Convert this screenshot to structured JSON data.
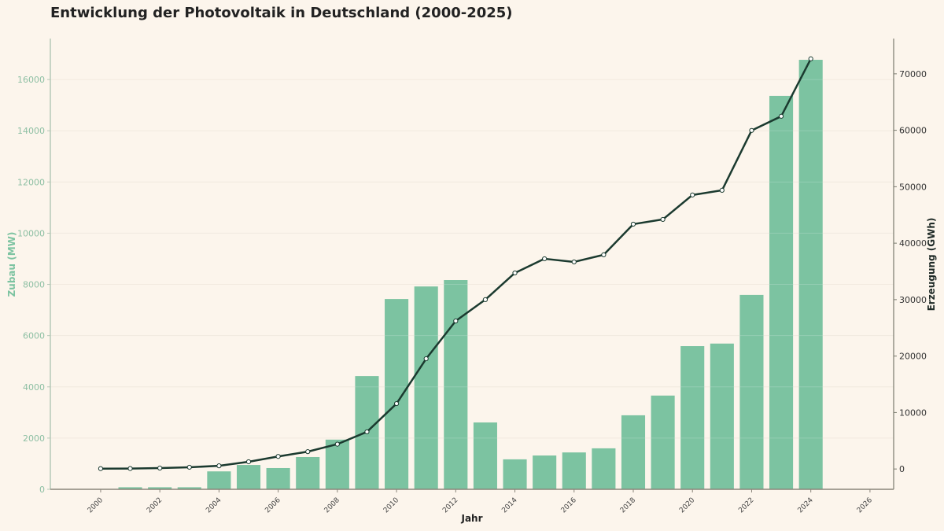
{
  "title": "Entwicklung der Photovoltaik in Deutschland (2000-2025)",
  "colors": {
    "background": "#fcf5ec",
    "bar": "#7cc3a1",
    "line": "#1b3a2f",
    "grid": "#efe6da",
    "left_axis": "#b5c9b8",
    "right_axis": "#7a7a6e",
    "marker_fill": "#ffffff"
  },
  "chart_data": {
    "type": "bar+line",
    "title": "Entwicklung der Photovoltaik in Deutschland (2000-2025)",
    "xlabel": "Jahr",
    "ylabel_left": "Zubau (MW)",
    "ylabel_right": "Erzeugung (GWh)",
    "x_ticks": [
      2000,
      2002,
      2004,
      2006,
      2008,
      2010,
      2012,
      2014,
      2016,
      2018,
      2020,
      2022,
      2024,
      2026
    ],
    "xlim": [
      1998.3,
      2026.8
    ],
    "ylim_left": [
      0,
      17600
    ],
    "ylim_right": [
      -3600,
      76250
    ],
    "y_ticks_left": [
      0,
      2000,
      4000,
      6000,
      8000,
      10000,
      12000,
      14000,
      16000
    ],
    "y_ticks_right": [
      0,
      10000,
      20000,
      30000,
      40000,
      50000,
      60000,
      70000
    ],
    "grid": true,
    "series": [
      {
        "name": "Zubau (MW)",
        "type": "bar",
        "axis": "left",
        "x": [
          2001,
          2002,
          2003,
          2004,
          2005,
          2006,
          2007,
          2008,
          2009,
          2010,
          2011,
          2012,
          2013,
          2014,
          2015,
          2016,
          2017,
          2018,
          2019,
          2020,
          2021,
          2022,
          2023,
          2024
        ],
        "values": [
          80,
          80,
          80,
          700,
          950,
          830,
          1260,
          1940,
          4420,
          7430,
          7920,
          8170,
          2610,
          1170,
          1320,
          1440,
          1600,
          2890,
          3660,
          5590,
          5690,
          7590,
          15360,
          16770
        ]
      },
      {
        "name": "Erzeugung (GWh)",
        "type": "line",
        "axis": "right",
        "x": [
          2000,
          2001,
          2002,
          2003,
          2004,
          2005,
          2006,
          2007,
          2008,
          2009,
          2010,
          2011,
          2012,
          2013,
          2014,
          2015,
          2016,
          2017,
          2018,
          2019,
          2020,
          2021,
          2022,
          2023,
          2024
        ],
        "values": [
          60,
          80,
          160,
          310,
          560,
          1280,
          2220,
          3070,
          4400,
          6580,
          11580,
          19530,
          26220,
          30000,
          34730,
          37240,
          36680,
          37940,
          43370,
          44210,
          48540,
          49370,
          59970,
          62480,
          72660
        ]
      }
    ]
  }
}
